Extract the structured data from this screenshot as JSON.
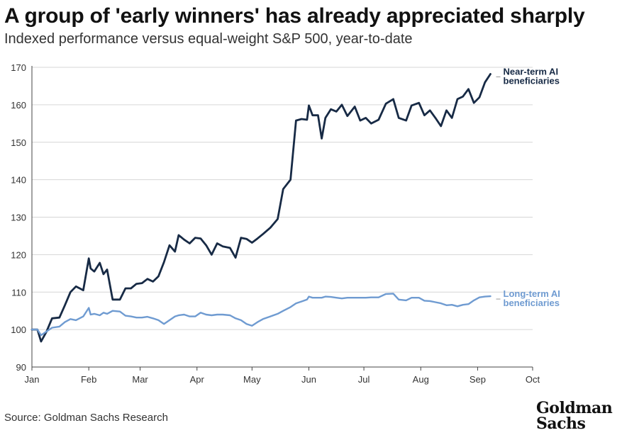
{
  "header": {
    "title": "A group of 'early winners' has already appreciated sharply",
    "subtitle": "Indexed performance versus equal-weight S&P 500, year-to-date"
  },
  "footer": {
    "source": "Source: Goldman Sachs Research",
    "logo_line1": "Goldman",
    "logo_line2": "Sachs"
  },
  "chart_data": {
    "type": "line",
    "title": "A group of 'early winners' has already appreciated sharply",
    "subtitle": "Indexed performance versus equal-weight S&P 500, year-to-date",
    "xlabel": "",
    "ylabel": "",
    "x_ticks": [
      "Jan",
      "Feb",
      "Mar",
      "Apr",
      "May",
      "Jun",
      "Jul",
      "Aug",
      "Sep",
      "Oct"
    ],
    "xlim": [
      "Jan",
      "Oct"
    ],
    "ylim": [
      90,
      170
    ],
    "y_ticks": [
      90,
      100,
      110,
      120,
      130,
      140,
      150,
      160,
      170
    ],
    "grid": "horizontal",
    "legend": "inline labels at right end of lines",
    "colors": {
      "near": "#172a45",
      "long": "#6f9bd1"
    },
    "series": [
      {
        "name": "Near-term AI beneficiaries",
        "color": "#172a45",
        "x": [
          "2023-01-01",
          "2023-01-04",
          "2023-01-06",
          "2023-01-09",
          "2023-01-12",
          "2023-01-16",
          "2023-01-19",
          "2023-01-22",
          "2023-01-25",
          "2023-01-29",
          "2023-02-01",
          "2023-02-02",
          "2023-02-04",
          "2023-02-07",
          "2023-02-09",
          "2023-02-11",
          "2023-02-14",
          "2023-02-18",
          "2023-02-21",
          "2023-02-24",
          "2023-02-27",
          "2023-03-02",
          "2023-03-05",
          "2023-03-08",
          "2023-03-11",
          "2023-03-14",
          "2023-03-17",
          "2023-03-20",
          "2023-03-22",
          "2023-03-25",
          "2023-03-28",
          "2023-03-31",
          "2023-04-03",
          "2023-04-06",
          "2023-04-09",
          "2023-04-12",
          "2023-04-15",
          "2023-04-19",
          "2023-04-22",
          "2023-04-25",
          "2023-04-28",
          "2023-05-01",
          "2023-05-04",
          "2023-05-07",
          "2023-05-11",
          "2023-05-15",
          "2023-05-18",
          "2023-05-22",
          "2023-05-25",
          "2023-05-28",
          "2023-05-31",
          "2023-06-01",
          "2023-06-03",
          "2023-06-06",
          "2023-06-08",
          "2023-06-10",
          "2023-06-13",
          "2023-06-16",
          "2023-06-19",
          "2023-06-22",
          "2023-06-26",
          "2023-06-29",
          "2023-07-02",
          "2023-07-05",
          "2023-07-09",
          "2023-07-13",
          "2023-07-17",
          "2023-07-20",
          "2023-07-24",
          "2023-07-27",
          "2023-07-31",
          "2023-08-03",
          "2023-08-06",
          "2023-08-09",
          "2023-08-12",
          "2023-08-15",
          "2023-08-18",
          "2023-08-21",
          "2023-08-24",
          "2023-08-27",
          "2023-08-30",
          "2023-09-02",
          "2023-09-05",
          "2023-09-08"
        ],
        "values": [
          100,
          100,
          96.8,
          99.5,
          103,
          103.2,
          106.5,
          110,
          111.5,
          110.5,
          119,
          116.3,
          115.5,
          117.8,
          114.8,
          116,
          108,
          108,
          111,
          111,
          112.2,
          112.4,
          113.5,
          112.8,
          114.2,
          118,
          122.5,
          120.8,
          125.2,
          124,
          123,
          124.5,
          124.3,
          122.5,
          120,
          123,
          122.2,
          121.8,
          119.2,
          124.5,
          124.2,
          123.2,
          124.3,
          125.5,
          127.2,
          129.5,
          137.5,
          140,
          155.8,
          156.2,
          156,
          159.8,
          157.2,
          157.2,
          151,
          156.5,
          158.8,
          158.2,
          160,
          157,
          159.5,
          155.8,
          156.5,
          155,
          156,
          160.3,
          161.5,
          156.5,
          155.8,
          159.8,
          160.5,
          157.2,
          158.5,
          156.5,
          154.3,
          158.5,
          156.5,
          161.5,
          162.2,
          164.2,
          160.5,
          162,
          166,
          168.2
        ]
      },
      {
        "name": "Long-term AI beneficiaries",
        "color": "#6f9bd1",
        "x": [
          "2023-01-01",
          "2023-01-04",
          "2023-01-06",
          "2023-01-09",
          "2023-01-12",
          "2023-01-16",
          "2023-01-19",
          "2023-01-22",
          "2023-01-25",
          "2023-01-29",
          "2023-02-01",
          "2023-02-02",
          "2023-02-04",
          "2023-02-07",
          "2023-02-09",
          "2023-02-11",
          "2023-02-14",
          "2023-02-18",
          "2023-02-21",
          "2023-02-24",
          "2023-02-27",
          "2023-03-02",
          "2023-03-05",
          "2023-03-08",
          "2023-03-11",
          "2023-03-14",
          "2023-03-17",
          "2023-03-20",
          "2023-03-22",
          "2023-03-25",
          "2023-03-28",
          "2023-03-31",
          "2023-04-03",
          "2023-04-06",
          "2023-04-09",
          "2023-04-12",
          "2023-04-15",
          "2023-04-19",
          "2023-04-22",
          "2023-04-25",
          "2023-04-28",
          "2023-05-01",
          "2023-05-04",
          "2023-05-07",
          "2023-05-11",
          "2023-05-15",
          "2023-05-18",
          "2023-05-22",
          "2023-05-25",
          "2023-05-28",
          "2023-05-31",
          "2023-06-01",
          "2023-06-03",
          "2023-06-06",
          "2023-06-08",
          "2023-06-10",
          "2023-06-13",
          "2023-06-16",
          "2023-06-19",
          "2023-06-22",
          "2023-06-26",
          "2023-06-29",
          "2023-07-02",
          "2023-07-05",
          "2023-07-09",
          "2023-07-13",
          "2023-07-17",
          "2023-07-20",
          "2023-07-24",
          "2023-07-27",
          "2023-07-31",
          "2023-08-03",
          "2023-08-06",
          "2023-08-09",
          "2023-08-12",
          "2023-08-15",
          "2023-08-18",
          "2023-08-21",
          "2023-08-24",
          "2023-08-27",
          "2023-08-30",
          "2023-09-02",
          "2023-09-05",
          "2023-09-08"
        ],
        "values": [
          100,
          100,
          98.5,
          99.5,
          100.5,
          100.8,
          102,
          102.8,
          102.5,
          103.5,
          105.8,
          104,
          104.2,
          103.8,
          104.5,
          104.2,
          105,
          104.8,
          103.7,
          103.5,
          103.2,
          103.2,
          103.4,
          103,
          102.5,
          101.5,
          102.5,
          103.5,
          103.8,
          104,
          103.5,
          103.5,
          104.5,
          104,
          103.8,
          104,
          104,
          103.8,
          103,
          102.5,
          101.5,
          101,
          102,
          102.8,
          103.5,
          104.2,
          105,
          106,
          107,
          107.5,
          108,
          108.8,
          108.5,
          108.5,
          108.5,
          108.8,
          108.7,
          108.5,
          108.3,
          108.5,
          108.5,
          108.5,
          108.5,
          108.6,
          108.6,
          109.5,
          109.6,
          108,
          107.8,
          108.5,
          108.5,
          107.7,
          107.6,
          107.3,
          107,
          106.5,
          106.6,
          106.2,
          106.6,
          106.8,
          107.8,
          108.6,
          108.8,
          108.9
        ]
      }
    ],
    "labels": [
      {
        "series": 0,
        "line1": "Near-term AI",
        "line2": "beneficiaries"
      },
      {
        "series": 1,
        "line1": "Long-term AI",
        "line2": "beneficiaries"
      }
    ]
  }
}
